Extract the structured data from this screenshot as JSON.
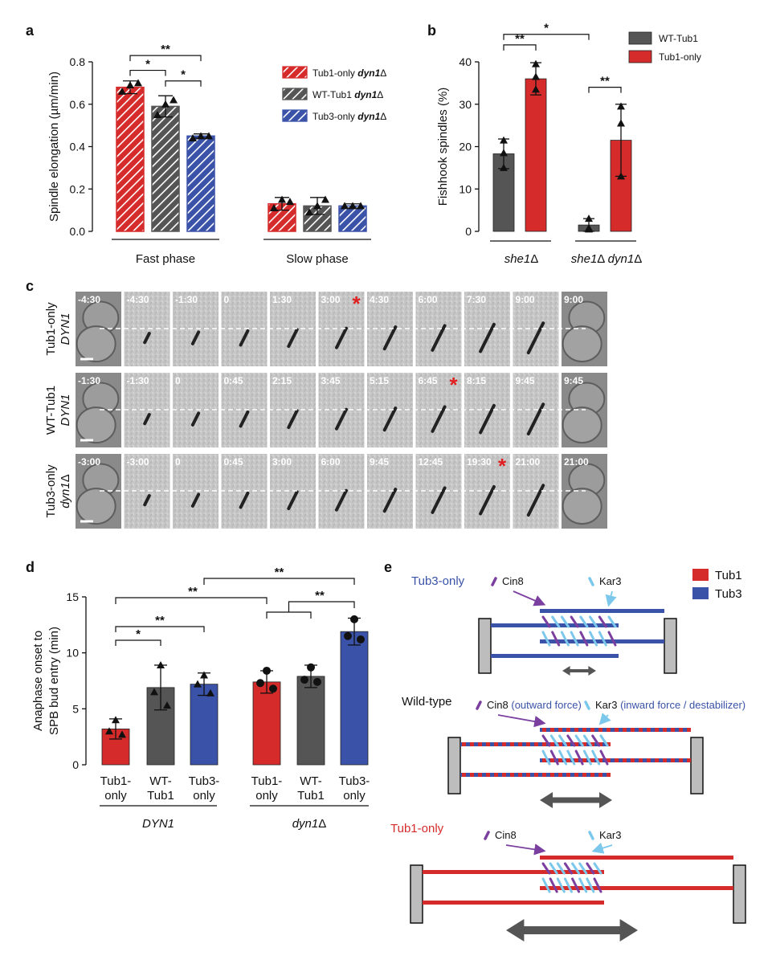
{
  "panels": {
    "a": "a",
    "b": "b",
    "c": "c",
    "d": "d",
    "e": "e"
  },
  "colors": {
    "tub1": "#d62b2b",
    "wt": "#555555",
    "tub3": "#3a52a8",
    "kar3": "#7cc8ec",
    "cin8": "#7b3fa0",
    "dark": "#555555"
  },
  "chart_data": [
    {
      "panel": "a",
      "type": "bar",
      "ylabel": "Spindle elongation (µm/min)",
      "ylim": [
        0,
        0.8
      ],
      "yticks": [
        "0.0",
        "0.2",
        "0.4",
        "0.6",
        "0.8"
      ],
      "groups": [
        "Fast phase",
        "Slow phase"
      ],
      "legend": [
        {
          "name": "Tub1-only",
          "italic": "dyn1",
          "delta": "Δ"
        },
        {
          "name": "WT-Tub1",
          "italic": "dyn1",
          "delta": "Δ"
        },
        {
          "name": "Tub3-only",
          "italic": "dyn1",
          "delta": "Δ"
        }
      ],
      "series": [
        {
          "name": "Tub1-only dyn1Δ",
          "values": [
            0.68,
            0.13
          ],
          "err": [
            0.03,
            0.03
          ],
          "points": [
            [
              0.66,
              0.69,
              0.7
            ],
            [
              0.11,
              0.15,
              0.14
            ]
          ],
          "color": "#d62b2b",
          "hatch": true
        },
        {
          "name": "WT-Tub1 dyn1Δ",
          "values": [
            0.59,
            0.12
          ],
          "err": [
            0.05,
            0.04
          ],
          "points": [
            [
              0.55,
              0.6,
              0.62
            ],
            [
              0.09,
              0.12,
              0.15
            ]
          ],
          "color": "#555555",
          "hatch": true
        },
        {
          "name": "Tub3-only dyn1Δ",
          "values": [
            0.45,
            0.12
          ],
          "err": [
            0.01,
            0.01
          ],
          "points": [
            [
              0.44,
              0.45,
              0.45
            ],
            [
              0.12,
              0.12,
              0.12
            ]
          ],
          "color": "#3a52a8",
          "hatch": true
        }
      ],
      "significance": [
        {
          "from": [
            0,
            0
          ],
          "to": [
            0,
            2
          ],
          "label": "**",
          "level": 0.83
        },
        {
          "from": [
            0,
            0
          ],
          "to": [
            0,
            1
          ],
          "label": "*",
          "level": 0.76
        },
        {
          "from": [
            0,
            1
          ],
          "to": [
            0,
            2
          ],
          "label": "*",
          "level": 0.71
        }
      ]
    },
    {
      "panel": "b",
      "type": "bar",
      "ylabel": "Fishhook spindles (%)",
      "ylim": [
        0,
        40
      ],
      "yticks": [
        "0",
        "10",
        "20",
        "30",
        "40"
      ],
      "groups": [
        {
          "parts": [
            {
              "t": "she1",
              "i": true
            },
            {
              "t": "Δ",
              "i": false
            }
          ]
        },
        {
          "parts": [
            {
              "t": "she1",
              "i": true
            },
            {
              "t": "Δ ",
              "i": false
            },
            {
              "t": "dyn1",
              "i": true
            },
            {
              "t": "Δ",
              "i": false
            }
          ]
        }
      ],
      "legend": [
        "WT-Tub1",
        "Tub1-only"
      ],
      "series": [
        {
          "name": "WT-Tub1",
          "values": [
            18.3,
            1.5
          ],
          "err": [
            3.5,
            1.5
          ],
          "points": [
            [
              21.5,
              18.5,
              15.0
            ],
            [
              3.0,
              0.5,
              0.8
            ]
          ],
          "color": "#555555"
        },
        {
          "name": "Tub1-only",
          "values": [
            36,
            21.5
          ],
          "err": [
            3.8,
            8.5
          ],
          "points": [
            [
              39.5,
              36.5,
              33.5
            ],
            [
              29.5,
              25.5,
              13.0
            ]
          ],
          "color": "#d62b2b"
        }
      ],
      "significance": [
        {
          "from": [
            0,
            0
          ],
          "to": [
            0,
            1
          ],
          "label": "**",
          "level": 44
        },
        {
          "from": [
            0,
            0
          ],
          "to": [
            1,
            0
          ],
          "label": "*",
          "level": 46.5
        },
        {
          "from": [
            1,
            0
          ],
          "to": [
            1,
            1
          ],
          "label": "**",
          "level": 34
        }
      ]
    },
    {
      "panel": "d",
      "type": "bar",
      "ylabel": [
        "Anaphase onset to",
        "SPB bud entry (min)"
      ],
      "ylim": [
        0,
        15
      ],
      "yticks": [
        "0",
        "5",
        "10",
        "15"
      ],
      "categories": [
        [
          "Tub1-",
          "only"
        ],
        [
          "WT-",
          "Tub1"
        ],
        [
          "Tub3-",
          "only"
        ],
        [
          "Tub1-",
          "only"
        ],
        [
          "WT-",
          "Tub1"
        ],
        [
          "Tub3-",
          "only"
        ]
      ],
      "groups": [
        {
          "t": "DYN1",
          "i": true,
          "d": ""
        },
        {
          "t": "dyn1",
          "i": true,
          "d": "Δ"
        }
      ],
      "values": [
        3.2,
        6.9,
        7.2,
        7.4,
        7.9,
        11.9
      ],
      "err": [
        0.9,
        2.0,
        1.0,
        1.0,
        1.0,
        1.2
      ],
      "points": [
        [
          4.0,
          3.0,
          2.7
        ],
        [
          8.9,
          6.5,
          5.3
        ],
        [
          8.0,
          7.2,
          6.4
        ],
        [
          8.4,
          7.3,
          6.8
        ],
        [
          8.7,
          7.6,
          7.4
        ],
        [
          13.0,
          11.5,
          11.2
        ]
      ],
      "markers": [
        "triangle",
        "triangle",
        "triangle",
        "circle",
        "circle",
        "circle"
      ],
      "colors": [
        "#d62b2b",
        "#555555",
        "#3a52a8",
        "#d62b2b",
        "#555555",
        "#3a52a8"
      ],
      "significance": [
        {
          "label": "*"
        },
        {
          "label": "**"
        },
        {
          "label": "**"
        },
        {
          "label": "**"
        },
        {
          "label": "**"
        }
      ]
    }
  ],
  "panel_c": {
    "rows": [
      {
        "label1": "Tub1-only",
        "label2": "DYN1",
        "label2_delta": "",
        "times": [
          "-4:30",
          "-4:30",
          "-1:30",
          "0",
          "1:30",
          "3:00",
          "4:30",
          "6:00",
          "7:30",
          "9:00",
          "9:00"
        ],
        "star_index": 5
      },
      {
        "label1": "WT-Tub1",
        "label2": "DYN1",
        "label2_delta": "",
        "times": [
          "-1:30",
          "-1:30",
          "0",
          "0:45",
          "2:15",
          "3:45",
          "5:15",
          "6:45",
          "8:15",
          "9:45",
          "9:45"
        ],
        "star_index": 7
      },
      {
        "label1": "Tub3-only",
        "label2": "dyn1",
        "label2_delta": "Δ",
        "times": [
          "-3:00",
          "-3:00",
          "0",
          "0:45",
          "3:00",
          "6:00",
          "9:45",
          "12:45",
          "19:30",
          "21:00",
          "21:00"
        ],
        "star_index": 8
      }
    ],
    "star": "*"
  },
  "panel_e": {
    "legend": [
      {
        "name": "Tub1",
        "color": "#d62b2b"
      },
      {
        "name": "Tub3",
        "color": "#3a52a8"
      }
    ],
    "diagrams": [
      {
        "title": "Tub3-only",
        "title_color": "#3a52a8",
        "cin8": "Cin8",
        "cin8_note": "",
        "kar3": "Kar3",
        "kar3_note": ""
      },
      {
        "title": "Wild-type",
        "title_color": "#111111",
        "cin8": "Cin8",
        "cin8_note": "(outward force)",
        "kar3": "Kar3",
        "kar3_note": "(inward force / destabilizer)"
      },
      {
        "title": "Tub1-only",
        "title_color": "#d62b2b",
        "cin8": "Cin8",
        "cin8_note": "",
        "kar3": "Kar3",
        "kar3_note": ""
      }
    ]
  }
}
